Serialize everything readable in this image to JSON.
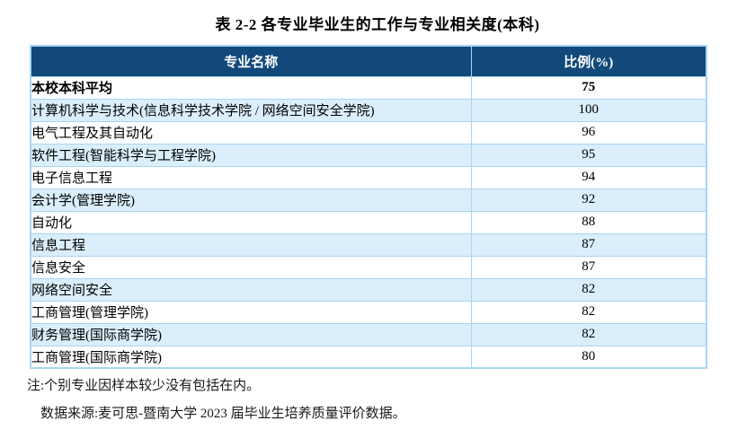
{
  "title": "表 2-2 各专业毕业生的工作与专业相关度(本科)",
  "table": {
    "headers": [
      "专业名称",
      "比例(%)"
    ],
    "rows": [
      {
        "name": "本校本科平均",
        "value": "75"
      },
      {
        "name": "计算机科学与技术(信息科学技术学院 / 网络空间安全学院)",
        "value": "100"
      },
      {
        "name": "电气工程及其自动化",
        "value": "96"
      },
      {
        "name": "软件工程(智能科学与工程学院)",
        "value": "95"
      },
      {
        "name": "电子信息工程",
        "value": "94"
      },
      {
        "name": "会计学(管理学院)",
        "value": "92"
      },
      {
        "name": "自动化",
        "value": "88"
      },
      {
        "name": "信息工程",
        "value": "87"
      },
      {
        "name": "信息安全",
        "value": "87"
      },
      {
        "name": "网络空间安全",
        "value": "82"
      },
      {
        "name": "工商管理(管理学院)",
        "value": "82"
      },
      {
        "name": "财务管理(国际商学院)",
        "value": "82"
      },
      {
        "name": "工商管理(国际商学院)",
        "value": "80"
      }
    ]
  },
  "notes": {
    "note1": "注:个别专业因样本较少没有包括在内。",
    "note2": "数据来源:麦可思-暨南大学 2023 届毕业生培养质量评价数据。"
  },
  "colors": {
    "header_bg": "#11497b",
    "header_text": "#ffffff",
    "alt_row_bg": "#dbeefc",
    "border": "#a9d5f3"
  },
  "chart_data": {
    "type": "table",
    "title": "表 2-2 各专业毕业生的工作与专业相关度(本科)",
    "columns": [
      "专业名称",
      "比例(%)"
    ],
    "categories": [
      "本校本科平均",
      "计算机科学与技术(信息科学技术学院 / 网络空间安全学院)",
      "电气工程及其自动化",
      "软件工程(智能科学与工程学院)",
      "电子信息工程",
      "会计学(管理学院)",
      "自动化",
      "信息工程",
      "信息安全",
      "网络空间安全",
      "工商管理(管理学院)",
      "财务管理(国际商学院)",
      "工商管理(国际商学院)"
    ],
    "values": [
      75,
      100,
      96,
      95,
      94,
      92,
      88,
      87,
      87,
      82,
      82,
      82,
      80
    ]
  }
}
